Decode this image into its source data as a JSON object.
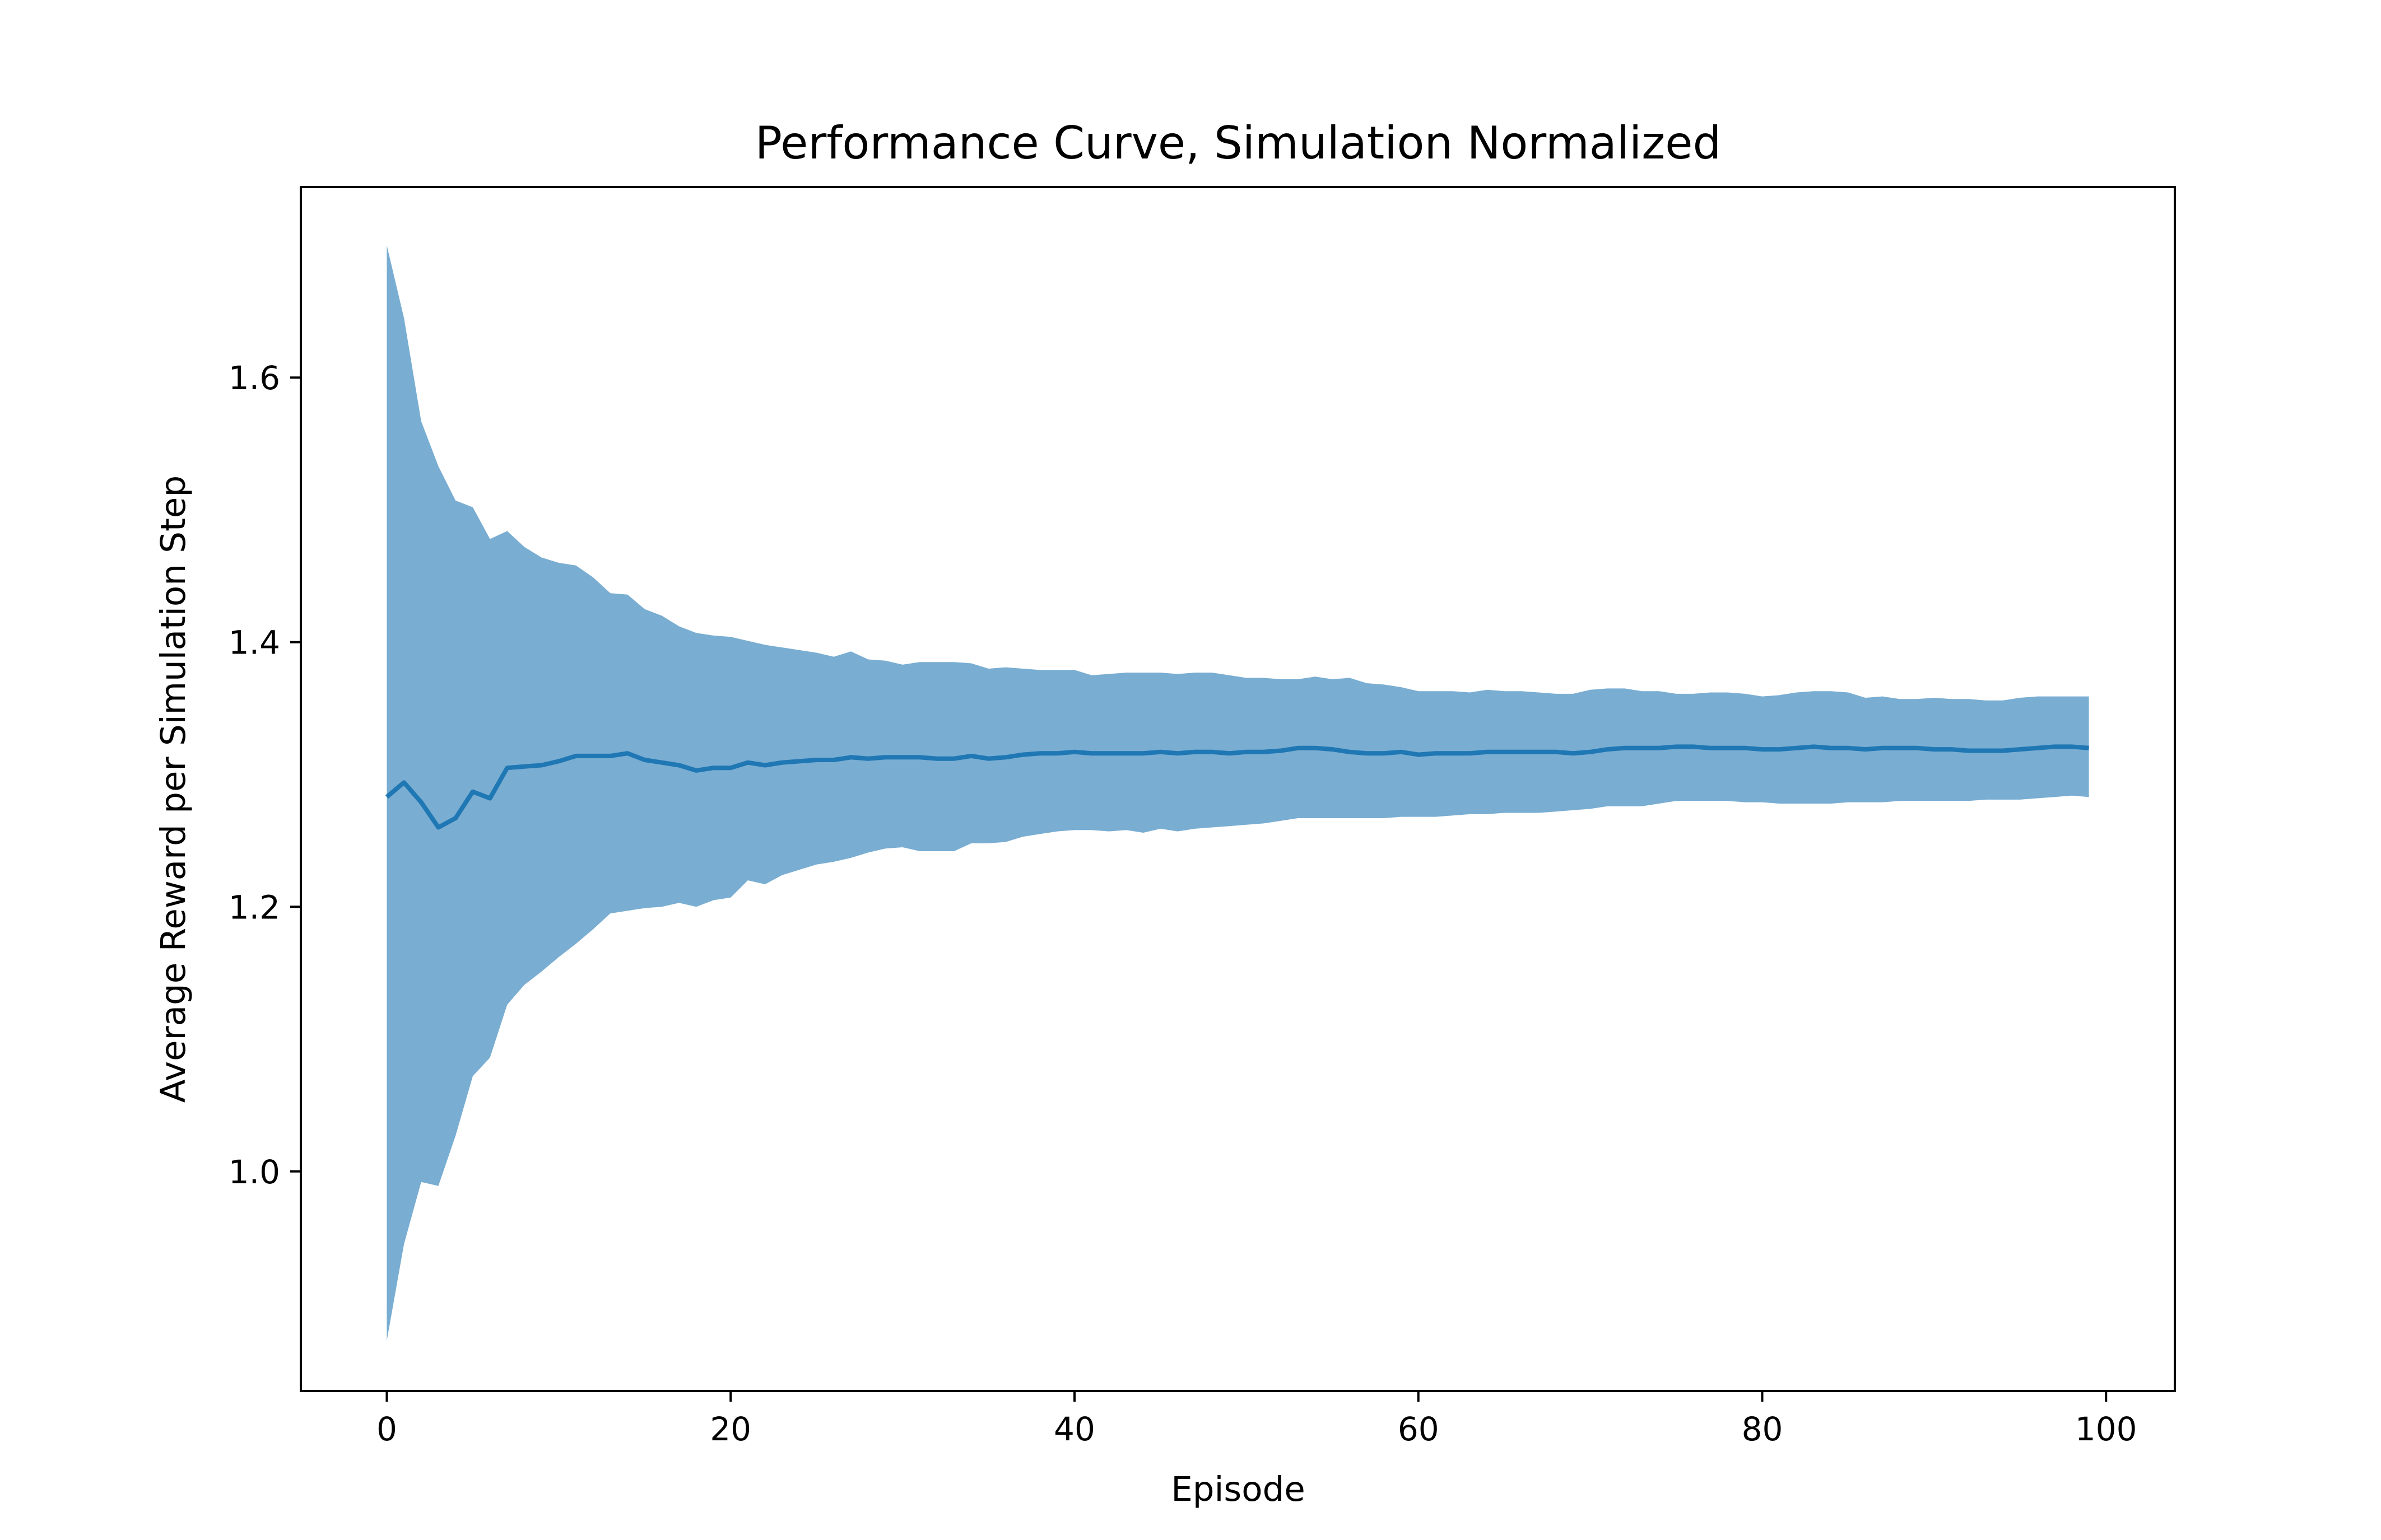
{
  "chart_data": {
    "type": "line",
    "title": "Performance Curve, Simulation Normalized",
    "xlabel": "Episode",
    "ylabel": "Average Reward per Simulation Step",
    "xlim": [
      -5,
      104
    ],
    "ylim": [
      0.834,
      1.744
    ],
    "xticks": [
      0,
      20,
      40,
      60,
      80,
      100
    ],
    "xtick_labels": [
      "0",
      "20",
      "40",
      "60",
      "80",
      "100"
    ],
    "yticks": [
      1.0,
      1.2,
      1.4,
      1.6
    ],
    "ytick_labels": [
      "1.0",
      "1.2",
      "1.4",
      "1.6"
    ],
    "grid": false,
    "legend": "none",
    "colors": {
      "line": "#1f77b4",
      "band": "#1f77b4",
      "band_alpha": 0.6,
      "axes": "#000000"
    },
    "series": [
      {
        "x": [
          0,
          1,
          2,
          3,
          4,
          5,
          6,
          7,
          8,
          9,
          10,
          11,
          12,
          13,
          14,
          15,
          16,
          17,
          18,
          19,
          20,
          21,
          22,
          23,
          24,
          25,
          26,
          27,
          28,
          29,
          30,
          31,
          32,
          33,
          34,
          35,
          36,
          37,
          38,
          39,
          40,
          41,
          42,
          43,
          44,
          45,
          46,
          47,
          48,
          49,
          50,
          51,
          52,
          53,
          54,
          55,
          56,
          57,
          58,
          59,
          60,
          61,
          62,
          63,
          64,
          65,
          66,
          67,
          68,
          69,
          70,
          71,
          72,
          73,
          74,
          75,
          76,
          77,
          78,
          79,
          80,
          81,
          82,
          83,
          84,
          85,
          86,
          87,
          88,
          89,
          90,
          91,
          92,
          93,
          94,
          95,
          96,
          97,
          98,
          99
        ],
        "mean": [
          1.283,
          1.294,
          1.279,
          1.26,
          1.267,
          1.287,
          1.282,
          1.305,
          1.306,
          1.307,
          1.31,
          1.314,
          1.314,
          1.314,
          1.316,
          1.311,
          1.309,
          1.307,
          1.303,
          1.305,
          1.305,
          1.309,
          1.307,
          1.309,
          1.31,
          1.311,
          1.311,
          1.313,
          1.312,
          1.313,
          1.313,
          1.313,
          1.312,
          1.312,
          1.314,
          1.312,
          1.313,
          1.315,
          1.316,
          1.316,
          1.317,
          1.316,
          1.316,
          1.316,
          1.316,
          1.317,
          1.316,
          1.317,
          1.317,
          1.316,
          1.317,
          1.317,
          1.318,
          1.32,
          1.32,
          1.319,
          1.317,
          1.316,
          1.316,
          1.317,
          1.315,
          1.316,
          1.316,
          1.316,
          1.317,
          1.317,
          1.317,
          1.317,
          1.317,
          1.316,
          1.317,
          1.319,
          1.32,
          1.32,
          1.32,
          1.321,
          1.321,
          1.32,
          1.32,
          1.32,
          1.319,
          1.319,
          1.32,
          1.321,
          1.32,
          1.32,
          1.319,
          1.32,
          1.32,
          1.32,
          1.319,
          1.319,
          1.318,
          1.318,
          1.318,
          1.319,
          1.32,
          1.321,
          1.321,
          1.32
        ],
        "upper": [
          1.7,
          1.645,
          1.567,
          1.533,
          1.507,
          1.502,
          1.478,
          1.484,
          1.472,
          1.464,
          1.46,
          1.458,
          1.449,
          1.437,
          1.436,
          1.425,
          1.42,
          1.412,
          1.407,
          1.405,
          1.404,
          1.401,
          1.398,
          1.396,
          1.394,
          1.392,
          1.389,
          1.393,
          1.387,
          1.386,
          1.383,
          1.385,
          1.385,
          1.385,
          1.384,
          1.38,
          1.381,
          1.38,
          1.379,
          1.379,
          1.379,
          1.375,
          1.376,
          1.377,
          1.377,
          1.377,
          1.376,
          1.377,
          1.377,
          1.375,
          1.373,
          1.373,
          1.372,
          1.372,
          1.374,
          1.372,
          1.373,
          1.369,
          1.368,
          1.366,
          1.363,
          1.363,
          1.363,
          1.362,
          1.364,
          1.363,
          1.363,
          1.362,
          1.361,
          1.361,
          1.364,
          1.365,
          1.365,
          1.363,
          1.363,
          1.361,
          1.361,
          1.362,
          1.362,
          1.361,
          1.359,
          1.36,
          1.362,
          1.363,
          1.363,
          1.362,
          1.358,
          1.359,
          1.357,
          1.357,
          1.358,
          1.357,
          1.357,
          1.356,
          1.356,
          1.358,
          1.359,
          1.359,
          1.359,
          1.359
        ],
        "lower": [
          0.872,
          0.945,
          0.992,
          0.989,
          1.027,
          1.072,
          1.086,
          1.126,
          1.141,
          1.151,
          1.162,
          1.172,
          1.183,
          1.195,
          1.197,
          1.199,
          1.2,
          1.203,
          1.2,
          1.205,
          1.207,
          1.22,
          1.217,
          1.224,
          1.228,
          1.232,
          1.234,
          1.237,
          1.241,
          1.244,
          1.245,
          1.242,
          1.242,
          1.242,
          1.248,
          1.248,
          1.249,
          1.253,
          1.255,
          1.257,
          1.258,
          1.258,
          1.257,
          1.258,
          1.256,
          1.259,
          1.257,
          1.259,
          1.26,
          1.261,
          1.262,
          1.263,
          1.265,
          1.267,
          1.267,
          1.267,
          1.267,
          1.267,
          1.267,
          1.268,
          1.268,
          1.268,
          1.269,
          1.27,
          1.27,
          1.271,
          1.271,
          1.271,
          1.272,
          1.273,
          1.274,
          1.276,
          1.276,
          1.276,
          1.278,
          1.28,
          1.28,
          1.28,
          1.28,
          1.279,
          1.279,
          1.278,
          1.278,
          1.278,
          1.278,
          1.279,
          1.279,
          1.279,
          1.28,
          1.28,
          1.28,
          1.28,
          1.28,
          1.281,
          1.281,
          1.281,
          1.282,
          1.283,
          1.284,
          1.283
        ]
      }
    ]
  }
}
